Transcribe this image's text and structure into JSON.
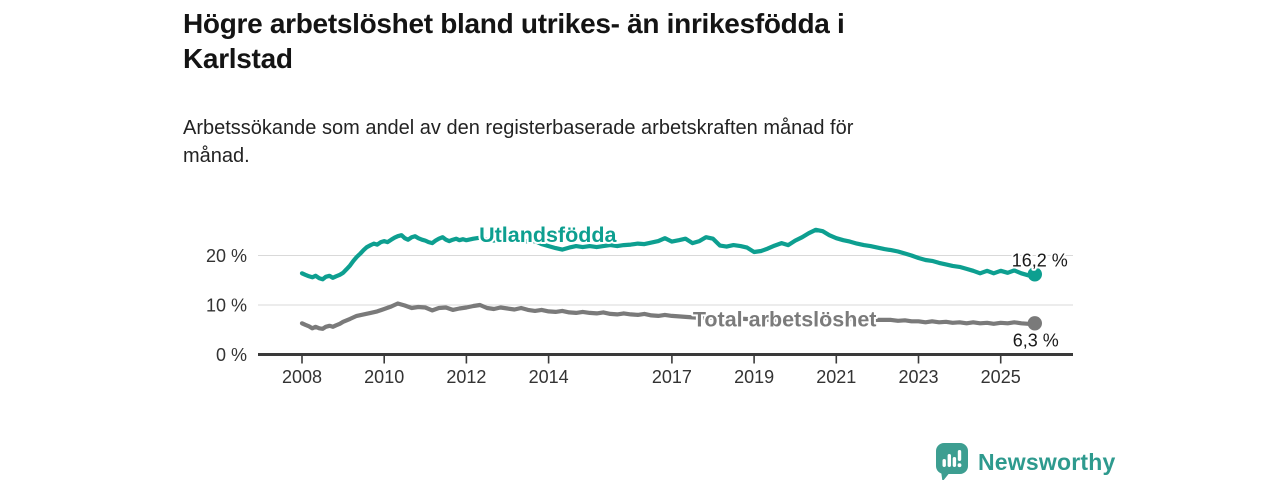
{
  "header": {
    "title": "Högre arbetslöshet bland utrikes- än inrikesfödda i\nKarlstad",
    "subtitle": "Arbetssökande som andel av den registerbaserade arbetskraften månad för\nmånad."
  },
  "footer": {
    "brand": "Newsworthy",
    "brand_color": "#2e9a8e"
  },
  "chart_data": {
    "type": "line",
    "title": "Högre arbetslöshet bland utrikes- än inrikesfödda i Karlstad",
    "subtitle": "Arbetssökande som andel av den registerbaserade arbetskraften månad för månad.",
    "x_unit": "decimal_year_monthly",
    "xlim": [
      2007.9,
      2026.9
    ],
    "ylim": [
      0,
      27
    ],
    "grid": "horizontal",
    "legend_position": "inline-labels",
    "colors": {
      "gridline": "#d9d9d9",
      "axis": "#3a3a3a",
      "tick_label": "#333333",
      "end_label": "#191919"
    },
    "y_ticks": [
      {
        "value": 0,
        "label": "0 %"
      },
      {
        "value": 10,
        "label": "10 %"
      },
      {
        "value": 20,
        "label": "20 %"
      }
    ],
    "x_ticks": [
      {
        "value": 2008,
        "label": "2008"
      },
      {
        "value": 2010,
        "label": "2010"
      },
      {
        "value": 2012,
        "label": "2012"
      },
      {
        "value": 2014,
        "label": "2014"
      },
      {
        "value": 2017,
        "label": "2017"
      },
      {
        "value": 2019,
        "label": "2019"
      },
      {
        "value": 2021,
        "label": "2021"
      },
      {
        "value": 2023,
        "label": "2023"
      },
      {
        "value": 2025,
        "label": "2025"
      }
    ],
    "series": [
      {
        "id": "utlandsfodda",
        "name": "Utlandsfödda",
        "color": "#0d9f90",
        "label_color": "#0d9f90",
        "label_pos": [
          2012.31,
          22.73
        ],
        "end_value": 16.2,
        "end_label": "16,2 %",
        "end_label_offset": [
          5,
          -8
        ],
        "points": [
          [
            2008.0,
            16.4
          ],
          [
            2008.08,
            16.1
          ],
          [
            2008.17,
            15.8
          ],
          [
            2008.25,
            15.6
          ],
          [
            2008.33,
            15.9
          ],
          [
            2008.42,
            15.4
          ],
          [
            2008.5,
            15.2
          ],
          [
            2008.58,
            15.7
          ],
          [
            2008.67,
            15.9
          ],
          [
            2008.75,
            15.5
          ],
          [
            2008.83,
            15.8
          ],
          [
            2008.92,
            16.1
          ],
          [
            2009.0,
            16.5
          ],
          [
            2009.08,
            17.2
          ],
          [
            2009.17,
            18.0
          ],
          [
            2009.25,
            18.9
          ],
          [
            2009.33,
            19.7
          ],
          [
            2009.42,
            20.4
          ],
          [
            2009.5,
            21.1
          ],
          [
            2009.58,
            21.7
          ],
          [
            2009.67,
            22.1
          ],
          [
            2009.75,
            22.4
          ],
          [
            2009.83,
            22.2
          ],
          [
            2009.92,
            22.7
          ],
          [
            2010.0,
            22.9
          ],
          [
            2010.08,
            22.7
          ],
          [
            2010.17,
            23.2
          ],
          [
            2010.25,
            23.6
          ],
          [
            2010.33,
            23.9
          ],
          [
            2010.42,
            24.1
          ],
          [
            2010.5,
            23.5
          ],
          [
            2010.58,
            23.2
          ],
          [
            2010.67,
            23.7
          ],
          [
            2010.75,
            23.9
          ],
          [
            2010.83,
            23.5
          ],
          [
            2010.92,
            23.2
          ],
          [
            2011.0,
            23.0
          ],
          [
            2011.08,
            22.7
          ],
          [
            2011.17,
            22.5
          ],
          [
            2011.25,
            23.0
          ],
          [
            2011.33,
            23.4
          ],
          [
            2011.42,
            23.7
          ],
          [
            2011.5,
            23.2
          ],
          [
            2011.58,
            22.9
          ],
          [
            2011.67,
            23.2
          ],
          [
            2011.75,
            23.4
          ],
          [
            2011.83,
            23.1
          ],
          [
            2011.92,
            23.3
          ],
          [
            2012.0,
            23.1
          ],
          [
            2012.17,
            23.4
          ],
          [
            2012.33,
            23.6
          ],
          [
            2012.5,
            23.2
          ],
          [
            2012.67,
            23.0
          ],
          [
            2012.83,
            23.3
          ],
          [
            2013.0,
            23.1
          ],
          [
            2013.17,
            22.9
          ],
          [
            2013.33,
            23.1
          ],
          [
            2013.5,
            22.8
          ],
          [
            2013.67,
            22.9
          ],
          [
            2013.83,
            22.3
          ],
          [
            2014.0,
            21.9
          ],
          [
            2014.17,
            21.5
          ],
          [
            2014.33,
            21.2
          ],
          [
            2014.5,
            21.6
          ],
          [
            2014.67,
            21.9
          ],
          [
            2014.83,
            21.7
          ],
          [
            2015.0,
            21.9
          ],
          [
            2015.17,
            21.7
          ],
          [
            2015.33,
            21.9
          ],
          [
            2015.5,
            22.1
          ],
          [
            2015.67,
            21.9
          ],
          [
            2015.83,
            22.1
          ],
          [
            2016.0,
            22.2
          ],
          [
            2016.17,
            22.4
          ],
          [
            2016.33,
            22.3
          ],
          [
            2016.5,
            22.6
          ],
          [
            2016.67,
            22.9
          ],
          [
            2016.83,
            23.5
          ],
          [
            2017.0,
            22.8
          ],
          [
            2017.17,
            23.1
          ],
          [
            2017.33,
            23.4
          ],
          [
            2017.5,
            22.5
          ],
          [
            2017.67,
            22.9
          ],
          [
            2017.83,
            23.7
          ],
          [
            2018.0,
            23.4
          ],
          [
            2018.17,
            22.0
          ],
          [
            2018.33,
            21.8
          ],
          [
            2018.5,
            22.1
          ],
          [
            2018.67,
            21.9
          ],
          [
            2018.83,
            21.6
          ],
          [
            2019.0,
            20.7
          ],
          [
            2019.17,
            20.9
          ],
          [
            2019.33,
            21.4
          ],
          [
            2019.5,
            22.0
          ],
          [
            2019.67,
            22.5
          ],
          [
            2019.83,
            22.1
          ],
          [
            2020.0,
            23.0
          ],
          [
            2020.17,
            23.7
          ],
          [
            2020.33,
            24.5
          ],
          [
            2020.5,
            25.2
          ],
          [
            2020.67,
            24.9
          ],
          [
            2020.83,
            24.1
          ],
          [
            2021.0,
            23.5
          ],
          [
            2021.17,
            23.1
          ],
          [
            2021.33,
            22.8
          ],
          [
            2021.5,
            22.4
          ],
          [
            2021.67,
            22.1
          ],
          [
            2021.83,
            21.9
          ],
          [
            2022.0,
            21.6
          ],
          [
            2022.17,
            21.3
          ],
          [
            2022.33,
            21.1
          ],
          [
            2022.5,
            20.8
          ],
          [
            2022.67,
            20.4
          ],
          [
            2022.83,
            20.0
          ],
          [
            2023.0,
            19.5
          ],
          [
            2023.17,
            19.1
          ],
          [
            2023.33,
            18.9
          ],
          [
            2023.5,
            18.5
          ],
          [
            2023.67,
            18.2
          ],
          [
            2023.83,
            17.9
          ],
          [
            2024.0,
            17.7
          ],
          [
            2024.17,
            17.3
          ],
          [
            2024.33,
            16.9
          ],
          [
            2024.5,
            16.4
          ],
          [
            2024.67,
            16.9
          ],
          [
            2024.83,
            16.4
          ],
          [
            2025.0,
            16.9
          ],
          [
            2025.17,
            16.5
          ],
          [
            2025.33,
            17.0
          ],
          [
            2025.5,
            16.4
          ],
          [
            2025.67,
            16.0
          ],
          [
            2025.83,
            16.2
          ]
        ]
      },
      {
        "id": "total-arbetsloshet",
        "name": "Total arbetslöshet",
        "color": "#7a7a7a",
        "label_color": "#7b7b7b",
        "label_pos": [
          2017.51,
          5.66
        ],
        "end_value": 6.3,
        "end_label": "6,3 %",
        "end_label_offset": [
          1,
          23
        ],
        "points": [
          [
            2008.0,
            6.3
          ],
          [
            2008.08,
            6.0
          ],
          [
            2008.17,
            5.7
          ],
          [
            2008.25,
            5.3
          ],
          [
            2008.33,
            5.6
          ],
          [
            2008.42,
            5.3
          ],
          [
            2008.5,
            5.2
          ],
          [
            2008.58,
            5.6
          ],
          [
            2008.67,
            5.8
          ],
          [
            2008.75,
            5.6
          ],
          [
            2008.83,
            5.9
          ],
          [
            2008.92,
            6.2
          ],
          [
            2009.0,
            6.6
          ],
          [
            2009.17,
            7.2
          ],
          [
            2009.33,
            7.8
          ],
          [
            2009.5,
            8.1
          ],
          [
            2009.67,
            8.4
          ],
          [
            2009.83,
            8.7
          ],
          [
            2010.0,
            9.2
          ],
          [
            2010.17,
            9.7
          ],
          [
            2010.33,
            10.3
          ],
          [
            2010.5,
            9.9
          ],
          [
            2010.67,
            9.4
          ],
          [
            2010.83,
            9.6
          ],
          [
            2011.0,
            9.5
          ],
          [
            2011.17,
            8.9
          ],
          [
            2011.33,
            9.4
          ],
          [
            2011.5,
            9.5
          ],
          [
            2011.67,
            9.0
          ],
          [
            2011.83,
            9.3
          ],
          [
            2012.0,
            9.5
          ],
          [
            2012.17,
            9.8
          ],
          [
            2012.33,
            10.0
          ],
          [
            2012.5,
            9.4
          ],
          [
            2012.67,
            9.2
          ],
          [
            2012.83,
            9.5
          ],
          [
            2013.0,
            9.3
          ],
          [
            2013.17,
            9.1
          ],
          [
            2013.33,
            9.4
          ],
          [
            2013.5,
            9.0
          ],
          [
            2013.67,
            8.8
          ],
          [
            2013.83,
            9.0
          ],
          [
            2014.0,
            8.7
          ],
          [
            2014.17,
            8.6
          ],
          [
            2014.33,
            8.8
          ],
          [
            2014.5,
            8.5
          ],
          [
            2014.67,
            8.4
          ],
          [
            2014.83,
            8.6
          ],
          [
            2015.0,
            8.4
          ],
          [
            2015.17,
            8.3
          ],
          [
            2015.33,
            8.5
          ],
          [
            2015.5,
            8.2
          ],
          [
            2015.67,
            8.1
          ],
          [
            2015.83,
            8.3
          ],
          [
            2016.0,
            8.1
          ],
          [
            2016.17,
            8.0
          ],
          [
            2016.33,
            8.2
          ],
          [
            2016.5,
            7.9
          ],
          [
            2016.67,
            7.8
          ],
          [
            2016.83,
            8.0
          ],
          [
            2017.0,
            7.8
          ],
          [
            2017.17,
            7.7
          ],
          [
            2017.33,
            7.6
          ],
          [
            2017.5,
            7.5
          ],
          [
            2017.75,
            7.4
          ],
          [
            2018.0,
            7.4
          ],
          [
            2018.5,
            7.3
          ],
          [
            2019.0,
            7.1
          ],
          [
            2019.5,
            7.0
          ],
          [
            2020.0,
            7.2
          ],
          [
            2020.5,
            7.4
          ],
          [
            2021.0,
            7.3
          ],
          [
            2021.5,
            7.1
          ],
          [
            2022.0,
            7.0
          ],
          [
            2022.33,
            7.0
          ],
          [
            2022.5,
            6.8
          ],
          [
            2022.67,
            6.9
          ],
          [
            2022.83,
            6.7
          ],
          [
            2023.0,
            6.7
          ],
          [
            2023.17,
            6.5
          ],
          [
            2023.33,
            6.7
          ],
          [
            2023.5,
            6.5
          ],
          [
            2023.67,
            6.6
          ],
          [
            2023.83,
            6.4
          ],
          [
            2024.0,
            6.5
          ],
          [
            2024.17,
            6.3
          ],
          [
            2024.33,
            6.5
          ],
          [
            2024.5,
            6.3
          ],
          [
            2024.67,
            6.4
          ],
          [
            2024.83,
            6.2
          ],
          [
            2025.0,
            6.4
          ],
          [
            2025.17,
            6.3
          ],
          [
            2025.33,
            6.5
          ],
          [
            2025.5,
            6.3
          ],
          [
            2025.67,
            6.2
          ],
          [
            2025.83,
            6.3
          ]
        ]
      }
    ]
  }
}
